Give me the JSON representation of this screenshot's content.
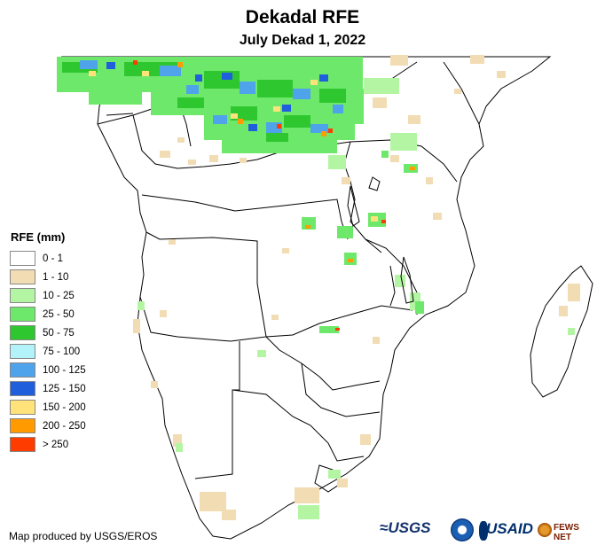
{
  "title": "Dekadal RFE",
  "subtitle": "July Dekad 1, 2022",
  "legend": {
    "title": "RFE (mm)",
    "items": [
      {
        "label": "0 - 1",
        "color": "#ffffff"
      },
      {
        "label": "1 - 10",
        "color": "#f1dcb3"
      },
      {
        "label": "10 - 25",
        "color": "#b4f5a4"
      },
      {
        "label": "25 - 50",
        "color": "#6ee86a"
      },
      {
        "label": "50 - 75",
        "color": "#2fc72f"
      },
      {
        "label": "75 - 100",
        "color": "#b2f2f8"
      },
      {
        "label": "100 - 125",
        "color": "#4ea3ea"
      },
      {
        "label": "125 - 150",
        "color": "#1f5fdc"
      },
      {
        "label": "150 - 200",
        "color": "#ffe27a"
      },
      {
        "label": "200 - 250",
        "color": "#ff9a00"
      },
      {
        "label": "> 250",
        "color": "#ff3c00"
      }
    ]
  },
  "credit": "Map produced by USGS/EROS",
  "logos": {
    "usgs": "≈USGS",
    "usaid": "USAID",
    "fews": "FEWS NET"
  }
}
